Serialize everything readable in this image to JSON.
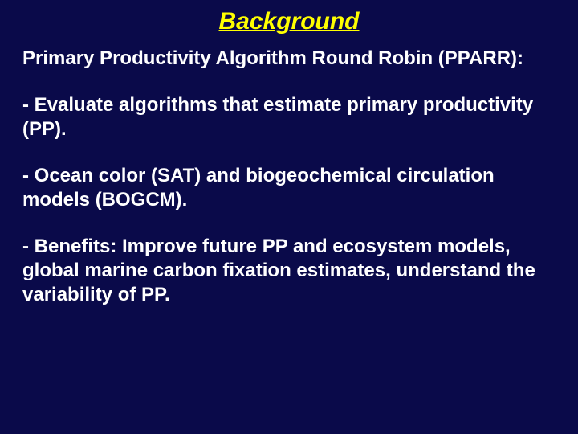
{
  "slide": {
    "title": "Background",
    "subtitle": "Primary Productivity Algorithm Round Robin (PPARR):",
    "bullets": [
      " - Evaluate algorithms that estimate primary productivity (PP).",
      " - Ocean color (SAT) and biogeochemical circulation models (BOGCM).",
      " - Benefits:  Improve future PP and ecosystem models, global marine carbon fixation estimates, understand the variability of PP."
    ],
    "colors": {
      "background": "#0a0a4a",
      "title_color": "#ffff00",
      "text_color": "#ffffff"
    },
    "typography": {
      "title_fontsize": 30,
      "title_style": "bold italic underline",
      "body_fontsize": 24,
      "body_weight": "bold",
      "font_family": "Arial"
    }
  }
}
